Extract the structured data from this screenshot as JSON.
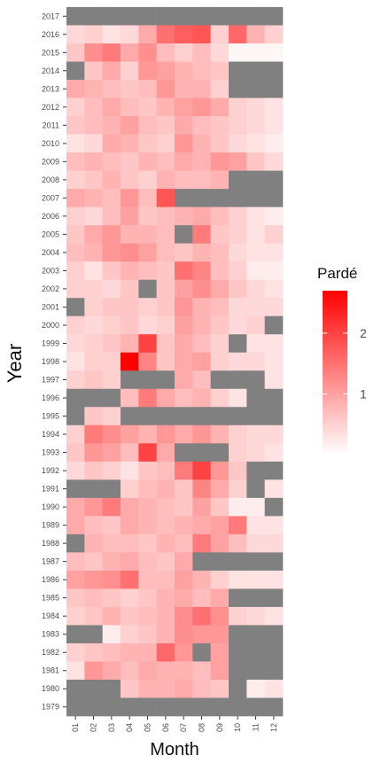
{
  "chart_data": {
    "type": "heatmap",
    "title": "",
    "xlabel": "Month",
    "ylabel": "Year",
    "legend": {
      "title": "Pardé",
      "ticks": [
        1,
        2
      ],
      "range": [
        0,
        2.7
      ],
      "placement": "right"
    },
    "colors": {
      "low": "#ffffff",
      "high": "#ff0000",
      "missing": "#808080"
    },
    "months": [
      "01",
      "02",
      "03",
      "04",
      "05",
      "06",
      "07",
      "08",
      "09",
      "10",
      "11",
      "12"
    ],
    "years": [
      "2017",
      "2016",
      "2015",
      "2014",
      "2013",
      "2012",
      "2011",
      "2010",
      "2009",
      "2008",
      "2007",
      "2006",
      "2005",
      "2004",
      "2003",
      "2002",
      "2001",
      "2000",
      "1999",
      "1998",
      "1997",
      "1996",
      "1995",
      "1994",
      "1993",
      "1992",
      "1991",
      "1990",
      "1989",
      "1988",
      "1987",
      "1986",
      "1985",
      "1984",
      "1983",
      "1982",
      "1981",
      "1980",
      "1979"
    ],
    "values": [
      [
        null,
        null,
        null,
        null,
        null,
        null,
        null,
        null,
        null,
        null,
        null,
        null
      ],
      [
        0.4,
        0.5,
        0.3,
        0.4,
        0.9,
        1.5,
        1.7,
        1.8,
        0.5,
        1.6,
        0.8,
        0.5
      ],
      [
        0.6,
        1.2,
        1.4,
        0.9,
        1.2,
        0.7,
        0.5,
        0.7,
        0.4,
        0.1,
        0.1,
        0.1
      ],
      [
        null,
        0.6,
        0.9,
        0.5,
        1.1,
        1.0,
        0.8,
        0.7,
        0.6,
        null,
        null,
        null
      ],
      [
        0.9,
        0.8,
        0.7,
        0.6,
        0.7,
        1.1,
        0.8,
        0.8,
        0.5,
        null,
        null,
        null
      ],
      [
        0.5,
        0.7,
        0.9,
        0.7,
        0.6,
        0.8,
        1.0,
        1.1,
        0.9,
        0.5,
        0.4,
        0.3
      ],
      [
        0.6,
        0.7,
        0.8,
        1.0,
        0.7,
        0.6,
        0.9,
        0.7,
        0.6,
        0.5,
        0.4,
        0.3
      ],
      [
        0.3,
        0.4,
        0.9,
        0.8,
        0.6,
        0.5,
        1.1,
        0.8,
        0.6,
        0.4,
        0.3,
        0.2
      ],
      [
        0.7,
        0.8,
        0.7,
        0.6,
        0.8,
        0.7,
        0.9,
        0.8,
        1.1,
        1.0,
        0.6,
        0.4
      ],
      [
        0.5,
        0.6,
        0.8,
        0.6,
        0.5,
        0.8,
        0.7,
        0.7,
        0.8,
        null,
        null,
        null
      ],
      [
        0.9,
        0.8,
        0.7,
        1.1,
        0.7,
        1.8,
        null,
        null,
        null,
        null,
        null,
        null
      ],
      [
        0.5,
        0.4,
        0.7,
        1.0,
        0.6,
        0.7,
        0.8,
        0.9,
        0.7,
        0.5,
        0.3,
        0.2
      ],
      [
        0.6,
        0.9,
        1.1,
        0.8,
        0.8,
        0.7,
        null,
        1.4,
        0.6,
        0.5,
        0.3,
        0.5
      ],
      [
        0.7,
        0.8,
        1.1,
        1.2,
        1.0,
        0.7,
        0.6,
        0.8,
        0.7,
        0.4,
        0.3,
        0.3
      ],
      [
        0.5,
        0.3,
        0.6,
        0.8,
        0.7,
        0.6,
        1.5,
        1.3,
        0.7,
        0.5,
        0.2,
        0.2
      ],
      [
        0.5,
        0.5,
        0.4,
        0.6,
        null,
        0.6,
        1.0,
        1.2,
        0.9,
        0.6,
        0.4,
        0.3
      ],
      [
        null,
        0.5,
        0.6,
        0.6,
        0.5,
        0.6,
        1.1,
        0.8,
        0.7,
        0.4,
        0.4,
        0.4
      ],
      [
        0.5,
        0.4,
        0.5,
        0.6,
        0.4,
        0.5,
        1.0,
        0.8,
        0.6,
        0.4,
        0.5,
        null
      ],
      [
        0.4,
        0.5,
        0.6,
        0.8,
        2.0,
        0.6,
        0.9,
        0.7,
        0.5,
        null,
        0.3,
        0.3
      ],
      [
        0.3,
        0.5,
        0.5,
        2.7,
        1.3,
        0.6,
        0.9,
        1.0,
        0.5,
        0.4,
        0.4,
        0.3
      ],
      [
        0.5,
        0.6,
        0.5,
        null,
        null,
        null,
        0.9,
        0.7,
        null,
        null,
        null,
        0.3
      ],
      [
        null,
        null,
        null,
        0.7,
        1.4,
        0.9,
        0.7,
        0.8,
        0.5,
        0.3,
        null,
        null
      ],
      [
        null,
        0.6,
        0.5,
        null,
        null,
        null,
        null,
        null,
        null,
        null,
        null,
        null
      ],
      [
        0.5,
        1.4,
        1.2,
        1.0,
        0.8,
        1.1,
        0.9,
        1.1,
        0.8,
        0.5,
        0.4,
        0.4
      ],
      [
        0.6,
        1.1,
        1.0,
        0.7,
        2.0,
        0.9,
        null,
        null,
        null,
        0.5,
        0.4,
        0.3
      ],
      [
        0.4,
        0.6,
        0.5,
        0.3,
        0.6,
        0.7,
        1.4,
        2.0,
        1.1,
        0.6,
        null,
        null
      ],
      [
        null,
        null,
        null,
        0.5,
        0.7,
        0.8,
        0.6,
        1.3,
        0.9,
        0.5,
        null,
        0.3
      ],
      [
        0.9,
        1.1,
        1.4,
        0.9,
        0.8,
        0.7,
        0.6,
        1.0,
        0.6,
        0.2,
        0.2,
        null
      ],
      [
        0.9,
        0.7,
        0.6,
        0.9,
        0.8,
        0.7,
        0.8,
        0.9,
        1.0,
        1.4,
        0.3,
        0.3
      ],
      [
        null,
        0.8,
        0.7,
        0.7,
        0.6,
        0.8,
        0.7,
        1.4,
        1.0,
        0.7,
        0.4,
        0.4
      ],
      [
        0.7,
        0.6,
        0.8,
        0.9,
        0.7,
        0.6,
        0.9,
        null,
        null,
        null,
        null,
        null
      ],
      [
        1.0,
        1.1,
        1.2,
        1.5,
        0.7,
        0.7,
        1.0,
        0.8,
        0.5,
        0.3,
        0.3,
        0.3
      ],
      [
        0.6,
        0.7,
        0.6,
        0.5,
        0.6,
        0.8,
        0.9,
        0.7,
        0.9,
        null,
        null,
        null
      ],
      [
        0.5,
        0.6,
        0.8,
        0.6,
        0.7,
        0.8,
        1.2,
        1.5,
        1.2,
        0.5,
        0.4,
        0.3
      ],
      [
        null,
        null,
        0.2,
        0.5,
        0.6,
        0.8,
        1.2,
        1.1,
        1.1,
        null,
        null,
        null
      ],
      [
        0.5,
        0.6,
        0.7,
        0.8,
        0.8,
        1.6,
        1.1,
        null,
        1.0,
        null,
        null,
        null
      ],
      [
        0.3,
        1.1,
        0.9,
        0.7,
        0.9,
        0.8,
        0.8,
        0.7,
        1.0,
        null,
        null,
        null
      ],
      [
        null,
        null,
        null,
        0.6,
        0.8,
        0.8,
        0.9,
        0.7,
        0.6,
        null,
        0.2,
        0.3
      ],
      [
        null,
        null,
        null,
        null,
        null,
        null,
        null,
        null,
        null,
        null,
        null,
        null
      ]
    ]
  }
}
